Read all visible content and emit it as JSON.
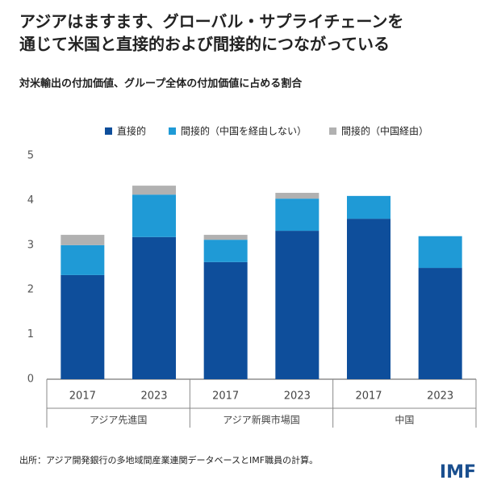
{
  "chart_data": {
    "type": "stacked-bar",
    "title": [
      "アジアはますます、グローバル・サプライチェーンを",
      "通じて米国と直接的および間接的につながっている"
    ],
    "subtitle": "対米輸出の付加価値、グループ全体の付加価値に占める割合",
    "groups": [
      {
        "name": "アジア先進国",
        "categories": [
          "2017",
          "2023"
        ]
      },
      {
        "name": "アジア新興市場国",
        "categories": [
          "2017",
          "2023"
        ]
      },
      {
        "name": "中国",
        "categories": [
          "2017",
          "2023"
        ]
      }
    ],
    "series": [
      {
        "name": "直接的",
        "color": "#0e4e9b",
        "values": [
          2.33,
          3.18,
          2.62,
          3.32,
          3.59,
          2.49
        ]
      },
      {
        "name": "間接的（中国を経由しない）",
        "color": "#1f9ad6",
        "values": [
          0.67,
          0.95,
          0.5,
          0.72,
          0.51,
          0.71
        ]
      },
      {
        "name": "間接的（中国経由）",
        "color": "#b1b1b1",
        "values": [
          0.23,
          0.2,
          0.11,
          0.13,
          null,
          null
        ]
      }
    ],
    "ylim": [
      0,
      5
    ],
    "yticks": [
      0,
      1,
      2,
      3,
      4,
      5
    ],
    "grid": false,
    "source": "出所：アジア開発銀行の多地域間産業連関データベースとIMF職員の計算。",
    "logo": "IMF"
  }
}
